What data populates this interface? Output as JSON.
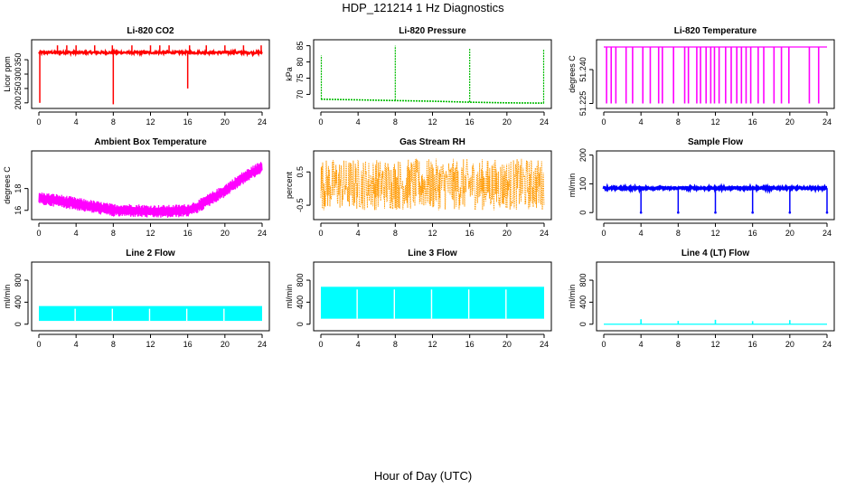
{
  "page": {
    "title": "HDP_121214  1 Hz Diagnostics",
    "xlabel": "Hour of Day (UTC)"
  },
  "chart_data": [
    {
      "type": "line",
      "title": "Li-820 CO2",
      "ylabel": "Licor ppm",
      "color": "#ff0000",
      "xlim": [
        0,
        24
      ],
      "xticks": [
        0,
        4,
        8,
        12,
        16,
        20,
        24
      ],
      "ylim": [
        190,
        410
      ],
      "yticks": [
        200,
        250,
        300,
        350
      ],
      "ytick_labels": [
        "200",
        "250",
        "300",
        "350"
      ],
      "series": [
        {
          "baseline": 375,
          "noise": 4,
          "spikes": [
            {
              "x": 0.1,
              "y": 200
            },
            {
              "x": 2.0,
              "y": 400
            },
            {
              "x": 3.0,
              "y": 400
            },
            {
              "x": 4.0,
              "y": 400
            },
            {
              "x": 6.0,
              "y": 400
            },
            {
              "x": 7.9,
              "y": 400
            },
            {
              "x": 8.0,
              "y": 195
            },
            {
              "x": 10.0,
              "y": 400
            },
            {
              "x": 12.0,
              "y": 400
            },
            {
              "x": 13.0,
              "y": 400
            },
            {
              "x": 14.0,
              "y": 400
            },
            {
              "x": 16.0,
              "y": 250
            },
            {
              "x": 16.2,
              "y": 400
            },
            {
              "x": 18.0,
              "y": 400
            },
            {
              "x": 20.0,
              "y": 400
            },
            {
              "x": 22.0,
              "y": 400
            },
            {
              "x": 23.9,
              "y": 400
            }
          ]
        }
      ]
    },
    {
      "type": "line",
      "title": "Li-820 Pressure",
      "ylabel": "kPa",
      "color": "#00bb00",
      "xlim": [
        0,
        24
      ],
      "xticks": [
        0,
        4,
        8,
        12,
        16,
        20,
        24
      ],
      "ylim": [
        66.5,
        86
      ],
      "yticks": [
        70,
        75,
        80,
        85
      ],
      "ytick_labels": [
        "70",
        "75",
        "80",
        "85"
      ],
      "series": [
        {
          "points": [
            [
              0,
              68.5
            ],
            [
              4,
              68.3
            ],
            [
              8,
              68.1
            ],
            [
              12,
              67.9
            ],
            [
              16,
              67.6
            ],
            [
              20,
              67.4
            ],
            [
              24,
              67.3
            ]
          ],
          "spikes": [
            {
              "x": 0.05,
              "y": 82
            },
            {
              "x": 8.0,
              "y": 85
            },
            {
              "x": 16.0,
              "y": 84
            },
            {
              "x": 23.95,
              "y": 84
            }
          ]
        }
      ]
    },
    {
      "type": "line",
      "title": "Li-820 Temperature",
      "ylabel": "degrees C",
      "color": "#ff00ff",
      "xlim": [
        0,
        24
      ],
      "xticks": [
        0,
        4,
        8,
        12,
        16,
        20,
        24
      ],
      "ylim": [
        51.224,
        51.252
      ],
      "yticks": [
        51.225,
        51.24
      ],
      "ytick_labels": [
        "51.225",
        "51.240"
      ],
      "series": [
        {
          "baseline": 51.25,
          "low": 51.225,
          "drop_hours": [
            0.3,
            0.8,
            1.3,
            2.4,
            3.1,
            4.2,
            5.0,
            5.9,
            6.3,
            7.5,
            8.7,
            9.1,
            10.0,
            10.4,
            11.0,
            11.5,
            11.9,
            12.4,
            13.1,
            13.7,
            14.3,
            14.8,
            15.3,
            15.8,
            16.6,
            17.2,
            18.3,
            19.1,
            19.9,
            22.1,
            23.1
          ]
        }
      ]
    },
    {
      "type": "line",
      "title": "Ambient Box Temperature",
      "ylabel": "degrees C",
      "color": "#ff00ff",
      "xlim": [
        0,
        24
      ],
      "xticks": [
        0,
        4,
        8,
        12,
        16,
        20,
        24
      ],
      "ylim": [
        15.4,
        21.2
      ],
      "yticks": [
        16,
        18
      ],
      "ytick_labels": [
        "16",
        "18"
      ],
      "series": [
        {
          "band": 0.6,
          "points": [
            [
              0,
              17.1
            ],
            [
              2,
              16.9
            ],
            [
              4,
              16.6
            ],
            [
              6,
              16.3
            ],
            [
              8,
              16.0
            ],
            [
              10,
              16.0
            ],
            [
              12,
              15.9
            ],
            [
              14,
              15.9
            ],
            [
              16,
              16.0
            ],
            [
              17,
              16.3
            ],
            [
              18,
              16.8
            ],
            [
              20,
              17.8
            ],
            [
              22,
              19.0
            ],
            [
              24,
              20.0
            ]
          ]
        }
      ]
    },
    {
      "type": "line",
      "title": "Gas Stream RH",
      "ylabel": "percent",
      "color": "#ff9900",
      "xlim": [
        0,
        24
      ],
      "xticks": [
        0,
        4,
        8,
        12,
        16,
        20,
        24
      ],
      "ylim": [
        -0.85,
        1.05
      ],
      "yticks": [
        -0.5,
        0.5
      ],
      "ytick_labels": [
        "-0.5",
        "0.5"
      ],
      "series": [
        {
          "low": -0.65,
          "high": 0.9,
          "center": 0.1
        }
      ]
    },
    {
      "type": "line",
      "title": "Sample Flow",
      "ylabel": "ml/min",
      "color": "#0000ff",
      "xlim": [
        0,
        24
      ],
      "xticks": [
        0,
        4,
        8,
        12,
        16,
        20,
        24
      ],
      "ylim": [
        -15,
        205
      ],
      "yticks": [
        0,
        100,
        200
      ],
      "ytick_labels": [
        "0",
        "100",
        "200"
      ],
      "series": [
        {
          "baseline": 85,
          "band": 6,
          "dips": [
            4,
            8,
            12,
            16,
            20,
            24
          ],
          "dip_value": 0
        }
      ]
    },
    {
      "type": "area",
      "title": "Line 2 Flow",
      "ylabel": "ml/min",
      "color": "#00ffff",
      "xlim": [
        0,
        24
      ],
      "xticks": [
        0,
        4,
        8,
        12,
        16,
        20,
        24
      ],
      "ylim": [
        -70,
        1080
      ],
      "yticks": [
        0,
        400,
        800
      ],
      "ytick_labels": [
        "0",
        "400",
        "800"
      ],
      "series": [
        {
          "low": 60,
          "high": 330,
          "gaps": [
            3.9,
            7.9,
            11.9,
            15.9,
            19.9
          ]
        }
      ]
    },
    {
      "type": "area",
      "title": "Line 3 Flow",
      "ylabel": "ml/min",
      "color": "#00ffff",
      "xlim": [
        0,
        24
      ],
      "xticks": [
        0,
        4,
        8,
        12,
        16,
        20,
        24
      ],
      "ylim": [
        -70,
        1080
      ],
      "yticks": [
        0,
        400,
        800
      ],
      "ytick_labels": [
        "0",
        "400",
        "800"
      ],
      "series": [
        {
          "low": 100,
          "high": 680,
          "gaps": [
            3.9,
            7.9,
            11.9,
            15.9,
            19.9
          ]
        }
      ]
    },
    {
      "type": "line",
      "title": "Line 4 (LT) Flow",
      "ylabel": "ml/min",
      "color": "#00ffff",
      "xlim": [
        0,
        24
      ],
      "xticks": [
        0,
        4,
        8,
        12,
        16,
        20,
        24
      ],
      "ylim": [
        -70,
        1080
      ],
      "yticks": [
        0,
        400,
        800
      ],
      "ytick_labels": [
        "0",
        "400",
        "800"
      ],
      "series": [
        {
          "baseline": 0,
          "spikes": [
            {
              "x": 4,
              "y": 90
            },
            {
              "x": 8,
              "y": 60
            },
            {
              "x": 12,
              "y": 80
            },
            {
              "x": 16,
              "y": 55
            },
            {
              "x": 20,
              "y": 75
            }
          ]
        }
      ]
    }
  ]
}
